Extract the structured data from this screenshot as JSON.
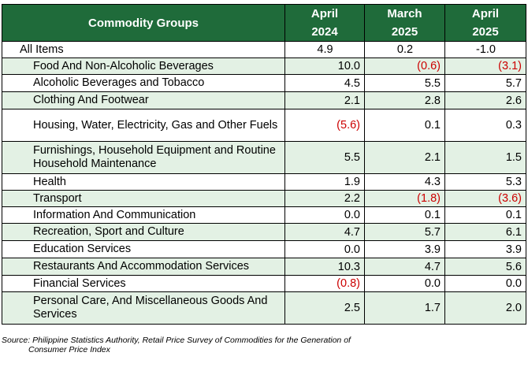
{
  "caption_fragment": "",
  "header": {
    "group_label": "Commodity Groups",
    "columns": [
      {
        "month": "April",
        "year": "2024"
      },
      {
        "month": "March",
        "year": "2025"
      },
      {
        "month": "April",
        "year": "2025"
      }
    ]
  },
  "rows": [
    {
      "name": "All Items",
      "v1": "4.9",
      "v2": "0.2",
      "v3": "-1.0"
    },
    {
      "name": "Food And Non-Alcoholic Beverages",
      "v1": "10.0",
      "v2": "(0.6)",
      "v3": "(3.1)"
    },
    {
      "name": "Alcoholic Beverages and Tobacco",
      "v1": "4.5",
      "v2": "5.5",
      "v3": "5.7"
    },
    {
      "name": "Clothing And Footwear",
      "v1": "2.1",
      "v2": "2.8",
      "v3": "2.6"
    },
    {
      "name": "Housing, Water, Electricity, Gas and Other Fuels",
      "v1": "(5.6)",
      "v2": "0.1",
      "v3": "0.3"
    },
    {
      "name": "Furnishings, Household Equipment and Routine Household Maintenance",
      "v1": "5.5",
      "v2": "2.1",
      "v3": "1.5"
    },
    {
      "name": "Health",
      "v1": "1.9",
      "v2": "4.3",
      "v3": "5.3"
    },
    {
      "name": "Transport",
      "v1": "2.2",
      "v2": "(1.8)",
      "v3": "(3.6)"
    },
    {
      "name": "Information And Communication",
      "v1": "0.0",
      "v2": "0.1",
      "v3": "0.1"
    },
    {
      "name": "Recreation, Sport and Culture",
      "v1": "4.7",
      "v2": "5.7",
      "v3": "6.1"
    },
    {
      "name": "Education Services",
      "v1": "0.0",
      "v2": "3.9",
      "v3": "3.9"
    },
    {
      "name": "Restaurants And Accommodation Services",
      "v1": "10.3",
      "v2": "4.7",
      "v3": "5.6"
    },
    {
      "name": "Financial Services",
      "v1": "(0.8)",
      "v2": "0.0",
      "v3": "0.0"
    },
    {
      "name": "Personal Care, And Miscellaneous Goods And Services",
      "v1": "2.5",
      "v2": "1.7",
      "v3": "2.0"
    }
  ],
  "source": {
    "line1": "Source:  Philippine  Statistics  Authority,  Retail  Price  Survey  of  Commodities  for  the  Generation  of",
    "line2": "Consumer Price Index"
  },
  "colors": {
    "header_bg": "#1f6b3a",
    "shade_bg": "#e3f1e4",
    "negative": "#cc0000"
  }
}
